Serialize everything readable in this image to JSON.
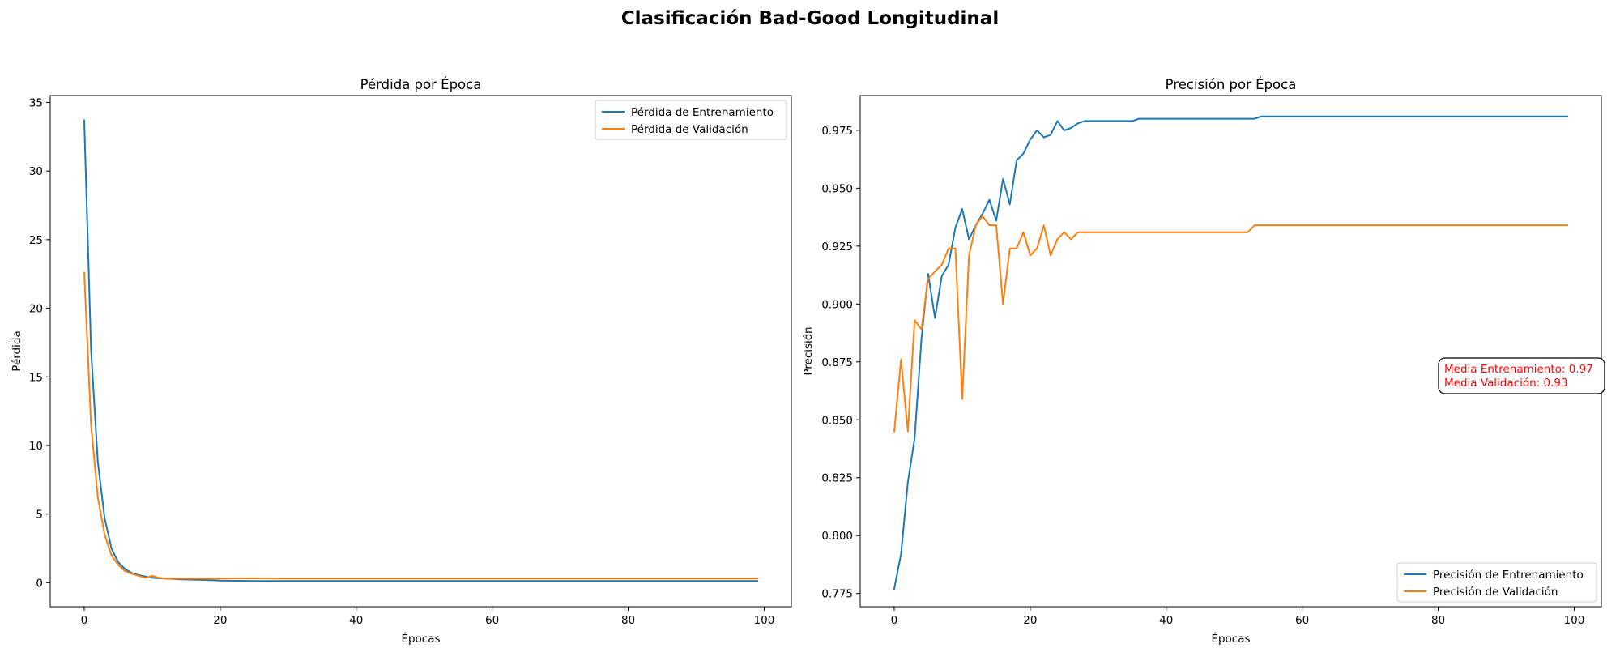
{
  "figure_title": "Clasificación Bad-Good Longitudinal",
  "colors": {
    "train": "#1f77b4",
    "val": "#ff7f0e",
    "annotation": "#ff0000"
  },
  "chart_data": [
    {
      "type": "line",
      "title": "Pérdida por Época",
      "xlabel": "Épocas",
      "ylabel": "Pérdida",
      "xlim": [
        -5,
        104
      ],
      "ylim": [
        -1.75,
        35.5
      ],
      "xticks": [
        0,
        20,
        40,
        60,
        80,
        100
      ],
      "yticks": [
        0,
        5,
        10,
        15,
        20,
        25,
        30,
        35
      ],
      "ytick_labels": [
        "0",
        "5",
        "10",
        "15",
        "20",
        "25",
        "30",
        "35"
      ],
      "grid": false,
      "legend": "upper right",
      "series": [
        {
          "name": "Pérdida de Entrenamiento",
          "color": "#1f77b4",
          "x": [
            0,
            1,
            2,
            3,
            4,
            5,
            6,
            7,
            8,
            9,
            10,
            12,
            14,
            16,
            18,
            20,
            25,
            30,
            40,
            50,
            60,
            70,
            80,
            90,
            99
          ],
          "values": [
            33.7,
            17.0,
            8.8,
            4.7,
            2.5,
            1.5,
            1.0,
            0.7,
            0.55,
            0.45,
            0.35,
            0.3,
            0.25,
            0.22,
            0.2,
            0.15,
            0.12,
            0.12,
            0.12,
            0.12,
            0.12,
            0.12,
            0.12,
            0.12,
            0.12
          ]
        },
        {
          "name": "Pérdida de Validación",
          "color": "#ff7f0e",
          "x": [
            0,
            1,
            2,
            3,
            4,
            5,
            6,
            7,
            8,
            9,
            10,
            11,
            12,
            14,
            16,
            18,
            20,
            23,
            30,
            40,
            50,
            60,
            70,
            80,
            90,
            99
          ],
          "values": [
            22.6,
            11.5,
            6.2,
            3.5,
            2.0,
            1.3,
            0.85,
            0.65,
            0.5,
            0.35,
            0.5,
            0.35,
            0.3,
            0.3,
            0.3,
            0.3,
            0.3,
            0.32,
            0.3,
            0.3,
            0.3,
            0.3,
            0.3,
            0.3,
            0.3,
            0.3
          ]
        }
      ]
    },
    {
      "type": "line",
      "title": "Precisión por Época",
      "xlabel": "Épocas",
      "ylabel": "Precisión",
      "xlim": [
        -5,
        104
      ],
      "ylim": [
        0.7693,
        0.99
      ],
      "xticks": [
        0,
        20,
        40,
        60,
        80,
        100
      ],
      "yticks": [
        0.775,
        0.8,
        0.825,
        0.85,
        0.875,
        0.9,
        0.925,
        0.95,
        0.975
      ],
      "ytick_labels": [
        "0.775",
        "0.800",
        "0.825",
        "0.850",
        "0.875",
        "0.900",
        "0.925",
        "0.950",
        "0.975"
      ],
      "grid": false,
      "legend": "lower right",
      "annotation": [
        "Media Entrenamiento: 0.97",
        "Media Validación: 0.93"
      ],
      "series": [
        {
          "name": "Precisión de Entrenamiento",
          "color": "#1f77b4",
          "x": [
            0,
            1,
            2,
            3,
            4,
            5,
            6,
            7,
            8,
            9,
            10,
            11,
            12,
            13,
            14,
            15,
            16,
            17,
            18,
            19,
            20,
            21,
            22,
            23,
            24,
            25,
            26,
            27,
            28,
            30,
            35,
            36,
            40,
            45,
            50,
            53,
            54,
            60,
            70,
            80,
            90,
            99
          ],
          "values": [
            0.777,
            0.792,
            0.823,
            0.842,
            0.885,
            0.913,
            0.894,
            0.912,
            0.917,
            0.933,
            0.941,
            0.928,
            0.934,
            0.939,
            0.945,
            0.936,
            0.954,
            0.943,
            0.962,
            0.965,
            0.971,
            0.975,
            0.972,
            0.973,
            0.979,
            0.975,
            0.976,
            0.978,
            0.979,
            0.979,
            0.979,
            0.98,
            0.98,
            0.98,
            0.98,
            0.98,
            0.981,
            0.981,
            0.981,
            0.981,
            0.981,
            0.981
          ]
        },
        {
          "name": "Precisión de Validación",
          "color": "#ff7f0e",
          "x": [
            0,
            1,
            2,
            3,
            4,
            5,
            6,
            7,
            8,
            9,
            10,
            11,
            12,
            13,
            14,
            15,
            16,
            17,
            18,
            19,
            20,
            21,
            22,
            23,
            24,
            25,
            26,
            27,
            30,
            40,
            50,
            52,
            53,
            60,
            70,
            80,
            90,
            99
          ],
          "values": [
            0.845,
            0.876,
            0.845,
            0.893,
            0.889,
            0.911,
            0.914,
            0.917,
            0.924,
            0.924,
            0.859,
            0.921,
            0.934,
            0.938,
            0.934,
            0.934,
            0.9,
            0.924,
            0.924,
            0.931,
            0.921,
            0.924,
            0.934,
            0.921,
            0.928,
            0.931,
            0.928,
            0.931,
            0.931,
            0.931,
            0.931,
            0.931,
            0.934,
            0.934,
            0.934,
            0.934,
            0.934,
            0.934
          ]
        }
      ]
    }
  ]
}
